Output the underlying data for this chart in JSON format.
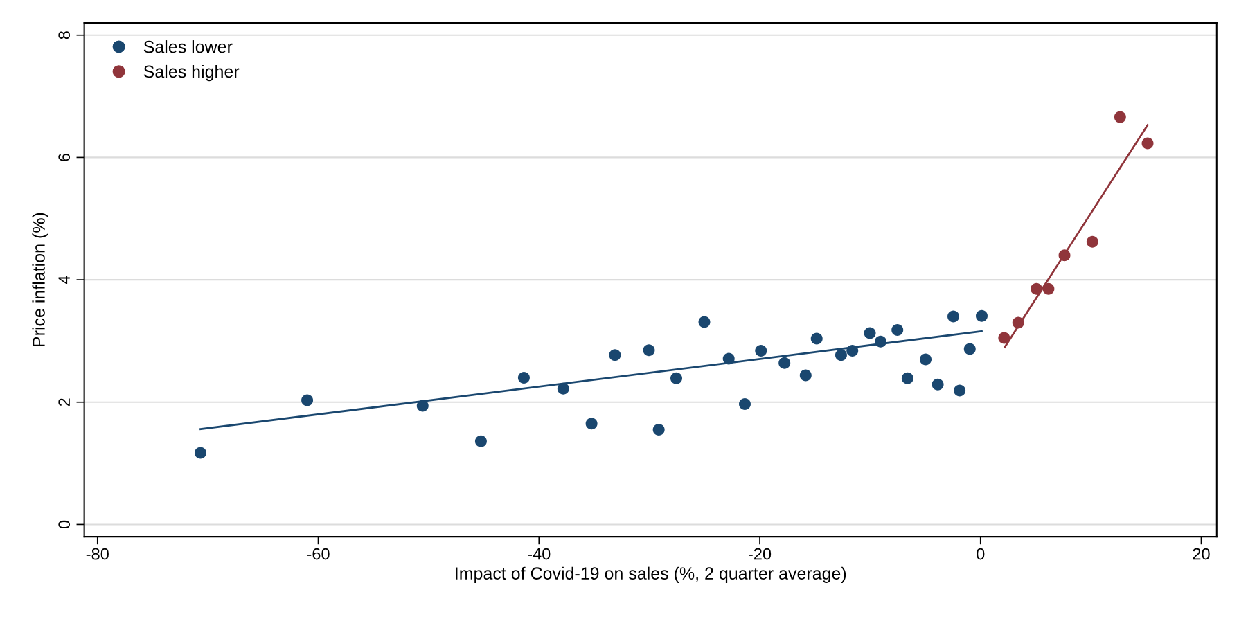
{
  "chart_data": {
    "type": "scatter",
    "xlabel": "Impact of Covid-19 on sales (%, 2 quarter average)",
    "ylabel": "Price inflation (%)",
    "xlim": [
      -81.2,
      21.4
    ],
    "ylim": [
      -0.2,
      8.2
    ],
    "xticks": [
      -80,
      -60,
      -40,
      -20,
      0,
      20
    ],
    "yticks": [
      0,
      2,
      4,
      6,
      8
    ],
    "grid": "y",
    "legend": "top left",
    "series": [
      {
        "marker": "circle",
        "name": "Sales lower",
        "color": "#1a476f",
        "x": [
          -70.67,
          -61.0,
          -50.54,
          -45.26,
          -41.37,
          -37.8,
          -35.24,
          -33.12,
          -30.04,
          -29.15,
          -27.56,
          -25.02,
          -22.81,
          -21.35,
          -19.89,
          -17.76,
          -15.84,
          -14.84,
          -12.63,
          -11.61,
          -10.02,
          -9.05,
          -7.53,
          -6.61,
          -4.97,
          -3.87,
          -2.46,
          -1.89,
          -0.97,
          0.11
        ],
        "values": [
          1.17,
          2.03,
          1.94,
          1.36,
          2.4,
          2.22,
          1.65,
          2.77,
          2.85,
          1.55,
          2.39,
          3.31,
          2.71,
          1.97,
          2.84,
          2.64,
          2.44,
          3.04,
          2.77,
          2.84,
          3.13,
          2.99,
          3.18,
          2.39,
          2.7,
          2.29,
          3.4,
          2.19,
          2.87,
          3.41
        ]
      },
      {
        "marker": "circle",
        "name": "Sales higher",
        "color": "#90353b",
        "x": [
          2.14,
          3.42,
          5.07,
          6.16,
          7.61,
          10.14,
          12.65,
          15.14
        ],
        "values": [
          3.05,
          3.3,
          3.85,
          3.85,
          4.4,
          4.62,
          6.66,
          6.23
        ]
      },
      {
        "type": "line",
        "color": "#1a476f",
        "x": [
          -70.67,
          0.11
        ],
        "values": [
          1.56,
          3.16
        ]
      },
      {
        "type": "line",
        "color": "#90353b",
        "x": [
          2.2,
          15.14
        ],
        "values": [
          2.9,
          6.53
        ]
      }
    ]
  }
}
